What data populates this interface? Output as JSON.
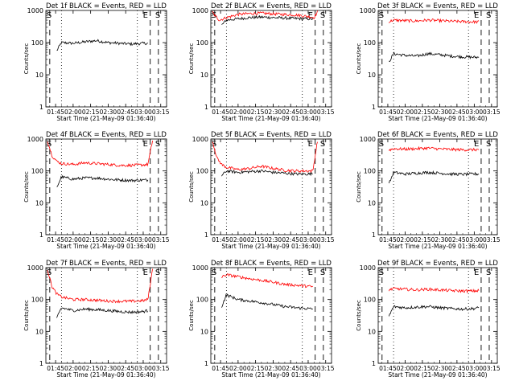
{
  "figure": {
    "x_axis_title": "Start Time (21-May-09 01:36:40)",
    "y_axis_title": "Counts/sec",
    "x_ticks": [
      "01:45",
      "02:00",
      "02:15",
      "02:30",
      "02:45",
      "03:00",
      "03:15"
    ],
    "y_ticks": [
      "1",
      "10",
      "100",
      "1000"
    ],
    "marker_start": "S",
    "marker_end": "E",
    "colors": {
      "events": "#000000",
      "lld": "#ff0000",
      "axes": "#000000"
    }
  },
  "chart_data": [
    {
      "type": "line",
      "title": "Det 1f BLACK = Events, RED = LLD",
      "xlabel": "Start Time (21-May-09 01:36:40)",
      "ylabel": "Counts/sec",
      "xlim": [
        "01:36:40",
        "03:20"
      ],
      "ylim": [
        1,
        1000
      ],
      "yscale": "log",
      "grid": false,
      "markers": {
        "S": [
          "01:40",
          "03:13"
        ],
        "E": [
          "03:06"
        ]
      },
      "series": [
        {
          "name": "Events",
          "color": "#000000",
          "x": [
            "01:46",
            "01:50",
            "02:00",
            "02:10",
            "02:20",
            "02:30",
            "02:40",
            "02:50",
            "03:00",
            "03:04"
          ],
          "values": [
            55,
            100,
            95,
            105,
            115,
            100,
            95,
            90,
            95,
            95
          ]
        }
      ]
    },
    {
      "type": "line",
      "title": "Det 2f BLACK = Events, RED = LLD",
      "xlabel": "Start Time (21-May-09 01:36:40)",
      "ylabel": "Counts/sec",
      "xlim": [
        "01:36:40",
        "03:20"
      ],
      "ylim": [
        1,
        1000
      ],
      "yscale": "log",
      "grid": false,
      "markers": {
        "S": [
          "01:40",
          "03:13"
        ],
        "E": [
          "03:06"
        ]
      },
      "series": [
        {
          "name": "Events",
          "color": "#000000",
          "x": [
            "01:46",
            "01:50",
            "02:00",
            "02:10",
            "02:20",
            "02:30",
            "02:40",
            "02:50",
            "03:00",
            "03:04"
          ],
          "values": [
            350,
            500,
            550,
            600,
            620,
            600,
            580,
            560,
            550,
            540
          ]
        },
        {
          "name": "LLD",
          "color": "#ff0000",
          "x": [
            "01:38",
            "01:40",
            "01:44",
            "01:50",
            "02:00",
            "02:10",
            "02:20",
            "02:30",
            "02:40",
            "02:50",
            "03:00",
            "03:05",
            "03:08"
          ],
          "values": [
            900,
            700,
            500,
            600,
            750,
            800,
            820,
            780,
            750,
            720,
            650,
            600,
            900
          ]
        }
      ]
    },
    {
      "type": "line",
      "title": "Det 3f BLACK = Events, RED = LLD",
      "xlabel": "Start Time (21-May-09 01:36:40)",
      "ylabel": "Counts/sec",
      "xlim": [
        "01:36:40",
        "03:20"
      ],
      "ylim": [
        1,
        1000
      ],
      "yscale": "log",
      "grid": false,
      "markers": {
        "S": [
          "01:40",
          "03:13"
        ],
        "E": [
          "03:06"
        ]
      },
      "series": [
        {
          "name": "Events",
          "color": "#000000",
          "x": [
            "01:46",
            "01:50",
            "02:00",
            "02:10",
            "02:20",
            "02:30",
            "02:40",
            "02:50",
            "03:00",
            "03:04"
          ],
          "values": [
            25,
            45,
            40,
            38,
            45,
            42,
            38,
            36,
            35,
            35
          ]
        },
        {
          "name": "LLD",
          "color": "#ff0000",
          "x": [
            "01:46",
            "01:50",
            "02:00",
            "02:10",
            "02:20",
            "02:30",
            "02:40",
            "02:50",
            "03:00",
            "03:04"
          ],
          "values": [
            450,
            500,
            480,
            470,
            500,
            480,
            460,
            450,
            440,
            440
          ]
        }
      ]
    },
    {
      "type": "line",
      "title": "Det 4f BLACK = Events, RED = LLD",
      "xlabel": "Start Time (21-May-09 01:36:40)",
      "ylabel": "Counts/sec",
      "xlim": [
        "01:36:40",
        "03:20"
      ],
      "ylim": [
        1,
        1000
      ],
      "yscale": "log",
      "grid": false,
      "markers": {
        "S": [
          "01:40",
          "03:13"
        ],
        "E": [
          "03:06"
        ]
      },
      "series": [
        {
          "name": "Events",
          "color": "#000000",
          "x": [
            "01:46",
            "01:50",
            "02:00",
            "02:10",
            "02:20",
            "02:30",
            "02:40",
            "02:50",
            "03:00",
            "03:04"
          ],
          "values": [
            30,
            65,
            55,
            60,
            60,
            55,
            52,
            50,
            52,
            52
          ]
        },
        {
          "name": "LLD",
          "color": "#ff0000",
          "x": [
            "01:38",
            "01:42",
            "01:46",
            "01:50",
            "02:00",
            "02:10",
            "02:20",
            "02:30",
            "02:40",
            "02:50",
            "03:00",
            "03:04",
            "03:08"
          ],
          "values": [
            900,
            300,
            200,
            170,
            160,
            180,
            170,
            160,
            150,
            150,
            155,
            160,
            900
          ]
        }
      ]
    },
    {
      "type": "line",
      "title": "Det 5f BLACK = Events, RED = LLD",
      "xlabel": "Start Time (21-May-09 01:36:40)",
      "ylabel": "Counts/sec",
      "xlim": [
        "01:36:40",
        "03:20"
      ],
      "ylim": [
        1,
        1000
      ],
      "yscale": "log",
      "grid": false,
      "markers": {
        "S": [
          "01:40",
          "03:13"
        ],
        "E": [
          "03:06"
        ]
      },
      "series": [
        {
          "name": "Events",
          "color": "#000000",
          "x": [
            "01:46",
            "01:50",
            "02:00",
            "02:10",
            "02:20",
            "02:30",
            "02:40",
            "02:50",
            "03:00",
            "03:04"
          ],
          "values": [
            70,
            100,
            90,
            95,
            100,
            90,
            85,
            80,
            80,
            82
          ]
        },
        {
          "name": "LLD",
          "color": "#ff0000",
          "x": [
            "01:38",
            "01:42",
            "01:46",
            "01:50",
            "02:00",
            "02:10",
            "02:20",
            "02:30",
            "02:40",
            "02:50",
            "03:00",
            "03:04",
            "03:08"
          ],
          "values": [
            900,
            250,
            160,
            130,
            110,
            120,
            140,
            120,
            105,
            100,
            100,
            100,
            900
          ]
        }
      ]
    },
    {
      "type": "line",
      "title": "Det 6f BLACK = Events, RED = LLD",
      "xlabel": "Start Time (21-May-09 01:36:40)",
      "ylabel": "Counts/sec",
      "xlim": [
        "01:36:40",
        "03:20"
      ],
      "ylim": [
        1,
        1000
      ],
      "yscale": "log",
      "grid": false,
      "markers": {
        "S": [
          "01:40",
          "03:13"
        ],
        "E": [
          "03:06"
        ]
      },
      "series": [
        {
          "name": "Events",
          "color": "#000000",
          "x": [
            "01:46",
            "01:50",
            "02:00",
            "02:10",
            "02:20",
            "02:30",
            "02:40",
            "02:50",
            "03:00",
            "03:04"
          ],
          "values": [
            40,
            90,
            80,
            85,
            90,
            85,
            80,
            78,
            80,
            80
          ]
        },
        {
          "name": "LLD",
          "color": "#ff0000",
          "x": [
            "01:46",
            "01:50",
            "02:00",
            "02:10",
            "02:20",
            "02:30",
            "02:40",
            "02:50",
            "03:00",
            "03:04"
          ],
          "values": [
            450,
            500,
            480,
            500,
            520,
            490,
            470,
            460,
            460,
            470
          ]
        }
      ]
    },
    {
      "type": "line",
      "title": "Det 7f BLACK = Events, RED = LLD",
      "xlabel": "Start Time (21-May-09 01:36:40)",
      "ylabel": "Counts/sec",
      "xlim": [
        "01:36:40",
        "03:20"
      ],
      "ylim": [
        1,
        1000
      ],
      "yscale": "log",
      "grid": false,
      "markers": {
        "S": [
          "01:40",
          "03:13"
        ],
        "E": [
          "03:06"
        ]
      },
      "series": [
        {
          "name": "Events",
          "color": "#000000",
          "x": [
            "01:46",
            "01:50",
            "02:00",
            "02:10",
            "02:20",
            "02:30",
            "02:40",
            "02:50",
            "03:00",
            "03:04"
          ],
          "values": [
            25,
            55,
            45,
            50,
            48,
            45,
            42,
            40,
            42,
            45
          ]
        },
        {
          "name": "LLD",
          "color": "#ff0000",
          "x": [
            "01:38",
            "01:42",
            "01:46",
            "01:50",
            "02:00",
            "02:10",
            "02:20",
            "02:30",
            "02:40",
            "02:50",
            "03:00",
            "03:04",
            "03:08"
          ],
          "values": [
            900,
            250,
            150,
            120,
            100,
            100,
            95,
            90,
            88,
            88,
            92,
            100,
            900
          ]
        }
      ]
    },
    {
      "type": "line",
      "title": "Det 8f BLACK = Events, RED = LLD",
      "xlabel": "Start Time (21-May-09 01:36:40)",
      "ylabel": "Counts/sec",
      "xlim": [
        "01:36:40",
        "03:20"
      ],
      "ylim": [
        1,
        1000
      ],
      "yscale": "log",
      "grid": false,
      "markers": {
        "S": [
          "01:40",
          "03:13"
        ],
        "E": [
          "03:06"
        ]
      },
      "series": [
        {
          "name": "Events",
          "color": "#000000",
          "x": [
            "01:46",
            "01:50",
            "02:00",
            "02:10",
            "02:20",
            "02:30",
            "02:40",
            "02:50",
            "03:00",
            "03:04"
          ],
          "values": [
            60,
            140,
            100,
            90,
            80,
            70,
            60,
            55,
            52,
            50
          ]
        },
        {
          "name": "LLD",
          "color": "#ff0000",
          "x": [
            "01:46",
            "01:50",
            "02:00",
            "02:10",
            "02:20",
            "02:30",
            "02:40",
            "02:50",
            "03:00",
            "03:04"
          ],
          "values": [
            500,
            600,
            520,
            450,
            400,
            350,
            300,
            280,
            260,
            250
          ]
        }
      ]
    },
    {
      "type": "line",
      "title": "Det 9f BLACK = Events, RED = LLD",
      "xlabel": "Start Time (21-May-09 01:36:40)",
      "ylabel": "Counts/sec",
      "xlim": [
        "01:36:40",
        "03:20"
      ],
      "ylim": [
        1,
        1000
      ],
      "yscale": "log",
      "grid": false,
      "markers": {
        "S": [
          "01:40",
          "03:13"
        ],
        "E": [
          "03:06"
        ]
      },
      "series": [
        {
          "name": "Events",
          "color": "#000000",
          "x": [
            "01:46",
            "01:50",
            "02:00",
            "02:10",
            "02:20",
            "02:30",
            "02:40",
            "02:50",
            "03:00",
            "03:04"
          ],
          "values": [
            30,
            60,
            55,
            58,
            60,
            55,
            52,
            50,
            52,
            55
          ]
        },
        {
          "name": "LLD",
          "color": "#ff0000",
          "x": [
            "01:46",
            "01:50",
            "02:00",
            "02:10",
            "02:20",
            "02:30",
            "02:40",
            "02:50",
            "03:00",
            "03:04"
          ],
          "values": [
            200,
            220,
            210,
            200,
            210,
            200,
            190,
            185,
            185,
            190
          ]
        }
      ]
    }
  ]
}
